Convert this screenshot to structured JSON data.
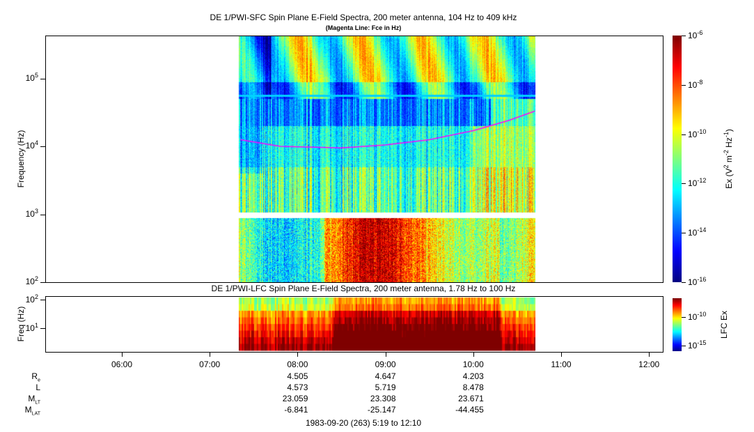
{
  "chart_data": [
    {
      "type": "heatmap",
      "title": "DE 1/PWI-SFC  Spin Plane E-Field Spectra, 200 meter antenna, 104 Hz to 409 kHz",
      "subtitle": "(Magenta Line: Fce in Hz)",
      "ylabel": "Frequency (Hz)",
      "yscale": "log",
      "ylim": [
        100,
        409000
      ],
      "y_ticks": [
        "10^2",
        "10^3",
        "10^4",
        "10^5"
      ],
      "colorbar_label": "Ex (V^2 m^-2 Hz^-1)",
      "colorbar_range": [
        1e-16,
        1e-06
      ],
      "colorbar_ticks": [
        "10^-6",
        "10^-8",
        "10^-10",
        "10^-12",
        "10^-14",
        "10^-16"
      ],
      "data_time_range": [
        "07:19",
        "10:43"
      ],
      "fce_line": {
        "name": "Fce",
        "color": "#ff00ff",
        "times_hr": [
          7.35,
          7.8,
          8.5,
          9.0,
          9.5,
          10.0,
          10.4,
          10.7
        ],
        "values_hz": [
          12500,
          10000,
          9500,
          10500,
          12500,
          17000,
          24000,
          33000
        ]
      }
    },
    {
      "type": "heatmap",
      "title": "DE 1/PWI-LFC  Spin Plane E-Field Spectra, 200 meter antenna, 1.78 Hz to 100 Hz",
      "ylabel": "Freq (Hz)",
      "yscale": "log",
      "ylim": [
        1.78,
        100
      ],
      "y_ticks": [
        "10^1",
        "10^2"
      ],
      "colorbar_label": "LFC Ex",
      "colorbar_ticks": [
        "10^-10",
        "10^-15"
      ],
      "data_time_range": [
        "07:19",
        "10:43"
      ]
    }
  ],
  "x_ticks": [
    "06:00",
    "07:00",
    "08:00",
    "09:00",
    "10:00",
    "11:00",
    "12:00"
  ],
  "ephemeris": {
    "labels": {
      "re": "R",
      "re_sub": "e",
      "l": "L",
      "mlt": "M",
      "mlt_sub": "LT",
      "mlat": "M",
      "mlat_sub": "LAT"
    },
    "columns": [
      {
        "re": "4.505",
        "l": "4.573",
        "mlt": "23.059",
        "mlat": "-6.841"
      },
      {
        "re": "4.647",
        "l": "5.719",
        "mlt": "23.308",
        "mlat": "-25.147"
      },
      {
        "re": "4.203",
        "l": "8.478",
        "mlt": "23.671",
        "mlat": "-44.455"
      }
    ]
  },
  "footer": "1983-09-20 (263) 5:19 to 12:10",
  "colors": {
    "fce": "#ff00ff"
  }
}
